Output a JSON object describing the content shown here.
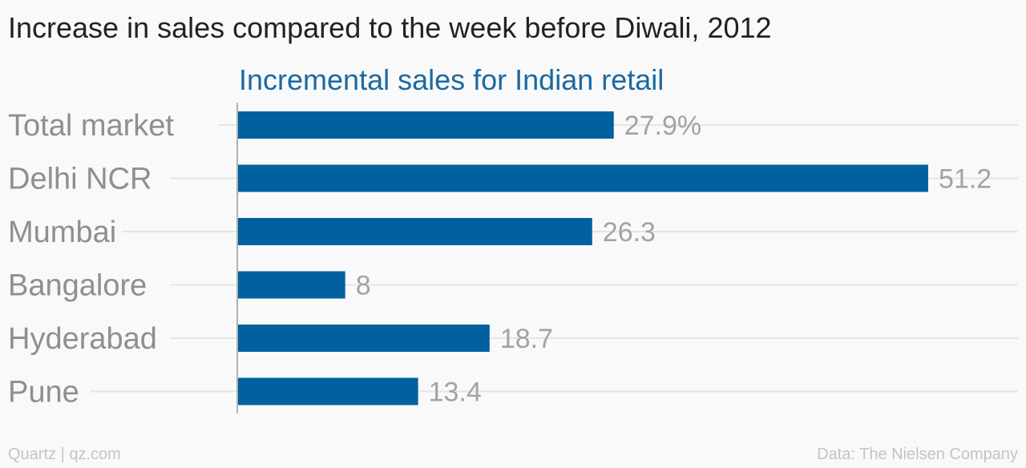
{
  "title": "Increase in sales compared to the week before Diwali, 2012",
  "footer": {
    "source_left": "Quartz | qz.com",
    "source_right": "Data: The Nielsen Company"
  },
  "colors": {
    "bar": "#0060a0",
    "series_label": "#1a69a3",
    "grid": "#e5e5e5",
    "axis": "#9a9a9a"
  },
  "chart_data": {
    "type": "bar",
    "orientation": "horizontal",
    "title": "Increase in sales compared to the week before Diwali, 2012",
    "categories": [
      "Total market",
      "Delhi NCR",
      "Mumbai",
      "Bangalore",
      "Hyderabad",
      "Pune"
    ],
    "series": [
      {
        "name": "Incremental sales for Indian retail",
        "values": [
          27.9,
          51.2,
          26.3,
          8,
          18.7,
          13.4
        ],
        "value_labels": [
          "27.9%",
          "51.2",
          "26.3",
          "8",
          "18.7",
          "13.4"
        ]
      }
    ],
    "xlim": [
      0,
      55
    ],
    "grid": true
  }
}
